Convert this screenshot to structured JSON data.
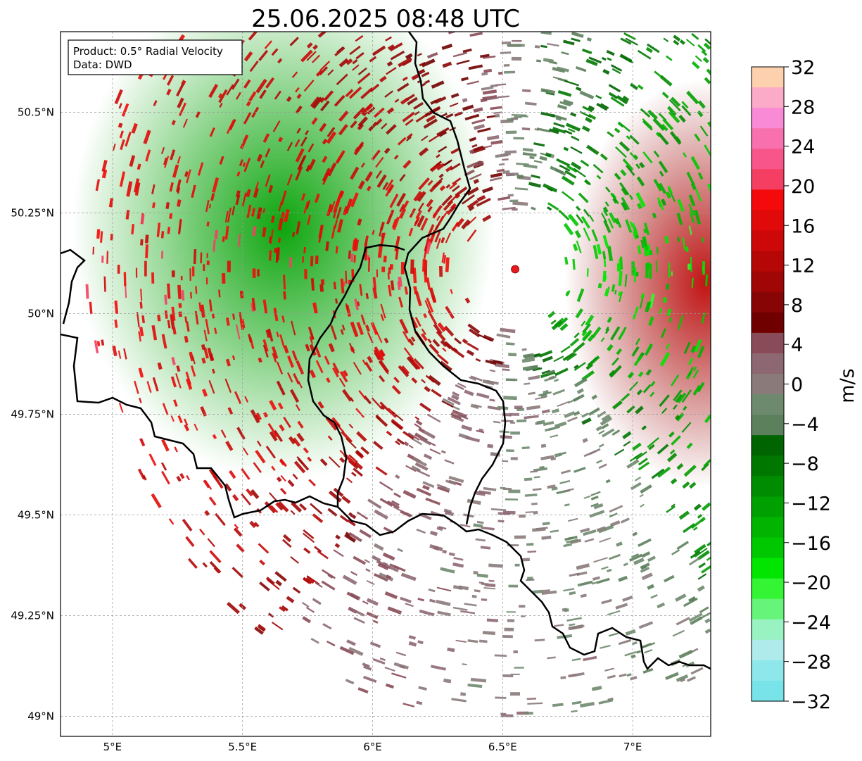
{
  "title": "25.06.2025 08:48 UTC",
  "info_box": {
    "product": "Product: 0.5° Radial Velocity",
    "source": "Data: DWD"
  },
  "map": {
    "lon_range": [
      4.8,
      7.3
    ],
    "lat_range": [
      48.95,
      50.7
    ],
    "lon_ticks": [
      {
        "value": 5.0,
        "label": "5°E"
      },
      {
        "value": 5.5,
        "label": "5.5°E"
      },
      {
        "value": 6.0,
        "label": "6°E"
      },
      {
        "value": 6.5,
        "label": "6.5°E"
      },
      {
        "value": 7.0,
        "label": "7°E"
      }
    ],
    "lat_ticks": [
      {
        "value": 49.0,
        "label": "49°N"
      },
      {
        "value": 49.25,
        "label": "49.25°N"
      },
      {
        "value": 49.5,
        "label": "49.5°N"
      },
      {
        "value": 49.75,
        "label": "49.75°N"
      },
      {
        "value": 50.0,
        "label": "50°N"
      },
      {
        "value": 50.25,
        "label": "50.25°N"
      },
      {
        "value": 50.5,
        "label": "50.5°N"
      }
    ],
    "radar_site": {
      "lon": 6.548,
      "lat": 50.11,
      "color": "#e8181e"
    },
    "gridlines": true
  },
  "colorbar": {
    "label": "m/s",
    "min": -32,
    "max": 32,
    "ticks": [
      {
        "value": 32,
        "label": "32"
      },
      {
        "value": 28,
        "label": "28"
      },
      {
        "value": 24,
        "label": "24"
      },
      {
        "value": 20,
        "label": "20"
      },
      {
        "value": 16,
        "label": "16"
      },
      {
        "value": 12,
        "label": "12"
      },
      {
        "value": 8,
        "label": "8"
      },
      {
        "value": 4,
        "label": "4"
      },
      {
        "value": 0,
        "label": "0"
      },
      {
        "value": -4,
        "label": "−4"
      },
      {
        "value": -8,
        "label": "−8"
      },
      {
        "value": -12,
        "label": "−12"
      },
      {
        "value": -16,
        "label": "−16"
      },
      {
        "value": -20,
        "label": "−20"
      },
      {
        "value": -24,
        "label": "−24"
      },
      {
        "value": -28,
        "label": "−28"
      },
      {
        "value": -32,
        "label": "−32"
      }
    ],
    "colors_top_to_bottom": [
      "#fdd0ae",
      "#fbaac8",
      "#f98ad6",
      "#f870ae",
      "#f8568a",
      "#f53f62",
      "#f40a0a",
      "#e10a0a",
      "#cc0808",
      "#b60707",
      "#a00606",
      "#880505",
      "#700000",
      "#8a4b58",
      "#8d6872",
      "#8a7a7a",
      "#6e8a6e",
      "#5c7f5c",
      "#006400",
      "#007800",
      "#008c00",
      "#00a000",
      "#00b400",
      "#00c800",
      "#00e600",
      "#33f533",
      "#66f57a",
      "#99f2c2",
      "#b0ebeb",
      "#8ee8eb",
      "#78e3e8"
    ]
  },
  "chart_data": {
    "type": "heatmap",
    "title": "25.06.2025 08:48 UTC",
    "variable_label": "m/s",
    "value_range": [
      -32,
      32
    ],
    "x_range_lon": [
      4.8,
      7.3
    ],
    "y_range_lat": [
      48.95,
      50.7
    ],
    "center": {
      "lon": 6.548,
      "lat": 50.11
    },
    "regions": [
      {
        "sector": "west",
        "approx_velocity": -16
      },
      {
        "sector": "south-west",
        "approx_velocity": -8
      },
      {
        "sector": "south",
        "approx_velocity": 0
      },
      {
        "sector": "north",
        "approx_velocity": 0
      },
      {
        "sector": "east",
        "approx_velocity": 12
      },
      {
        "sector": "south-east",
        "approx_velocity": 4
      }
    ]
  }
}
